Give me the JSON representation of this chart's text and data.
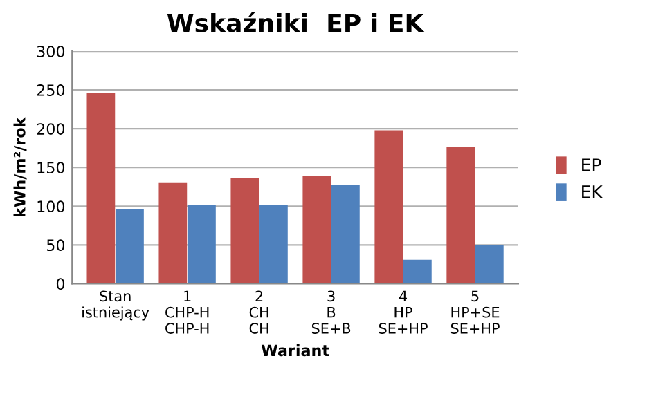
{
  "chart_data": {
    "type": "bar",
    "title": "Wskaźniki  EP i EK",
    "xlabel": "Wariant",
    "ylabel": "kWh/m²/rok",
    "categories": [
      "Stan\nistniejący",
      "1\nCHP-H\nCHP-H",
      "2\nCH\nCH",
      "3\nB\nSE+B",
      "4\nHP\nSE+HP",
      "5\nHP+SE\nSE+HP"
    ],
    "series": [
      {
        "name": "EP",
        "color": "#c0504d",
        "values": [
          246,
          130,
          136,
          139,
          198,
          177
        ]
      },
      {
        "name": "EK",
        "color": "#4f81bd",
        "values": [
          96,
          102,
          102,
          128,
          31,
          50
        ]
      }
    ],
    "ylim": [
      0,
      300
    ],
    "yticks": [
      0,
      50,
      100,
      150,
      200,
      250,
      300
    ],
    "grid": "y",
    "legend": "right"
  }
}
